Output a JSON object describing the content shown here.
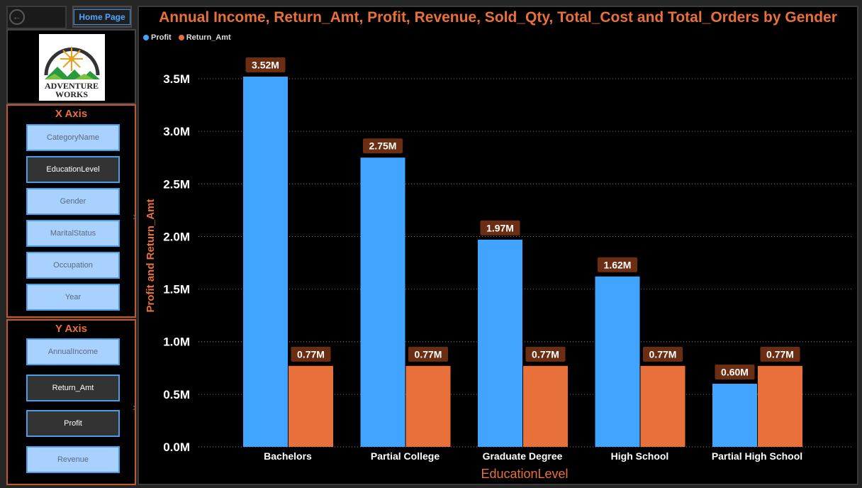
{
  "nav": {
    "back_icon": "back-arrow-icon",
    "home_label": "Home Page"
  },
  "logo": {
    "line1": "ADVENTURE",
    "line2": "WORKS"
  },
  "x_axis_slicer": {
    "title": "X Axis",
    "items": [
      {
        "label": "CategoryName",
        "selected": false
      },
      {
        "label": "EducationLevel",
        "selected": true
      },
      {
        "label": "Gender",
        "selected": false
      },
      {
        "label": "MaritalStatus",
        "selected": false
      },
      {
        "label": "Occupation",
        "selected": false
      },
      {
        "label": "Year",
        "selected": false
      }
    ]
  },
  "y_axis_slicer": {
    "title": "Y Axis",
    "items": [
      {
        "label": "AnnualIncome",
        "selected": false
      },
      {
        "label": "Return_Amt",
        "selected": true
      },
      {
        "label": "Profit",
        "selected": true
      },
      {
        "label": "Revenue",
        "selected": false
      }
    ]
  },
  "colors": {
    "accent": "#e8703a",
    "profit": "#41a5ff",
    "return_amt": "#e8703a",
    "label_bg": "#6b2e12"
  },
  "chart_data": {
    "type": "bar",
    "title": "Annual Income, Return_Amt, Profit, Revenue, Sold_Qty, Total_Cost and Total_Orders by Gender",
    "xlabel": "EducationLevel",
    "ylabel": "Profit and Return_Amt",
    "categories": [
      "Bachelors",
      "Partial College",
      "Graduate Degree",
      "High School",
      "Partial High School"
    ],
    "series": [
      {
        "name": "Profit",
        "values": [
          3.52,
          2.75,
          1.97,
          1.62,
          0.6
        ],
        "labels": [
          "3.52M",
          "2.75M",
          "1.97M",
          "1.62M",
          "0.60M"
        ]
      },
      {
        "name": "Return_Amt",
        "values": [
          0.77,
          0.77,
          0.77,
          0.77,
          0.77
        ],
        "labels": [
          "0.77M",
          "0.77M",
          "0.77M",
          "0.77M",
          "0.77M"
        ]
      }
    ],
    "y_ticks": [
      "0.0M",
      "0.5M",
      "1.0M",
      "1.5M",
      "2.0M",
      "2.5M",
      "3.0M",
      "3.5M"
    ],
    "ylim": [
      0,
      3.5
    ],
    "grid": true,
    "legend_position": "top-left"
  }
}
